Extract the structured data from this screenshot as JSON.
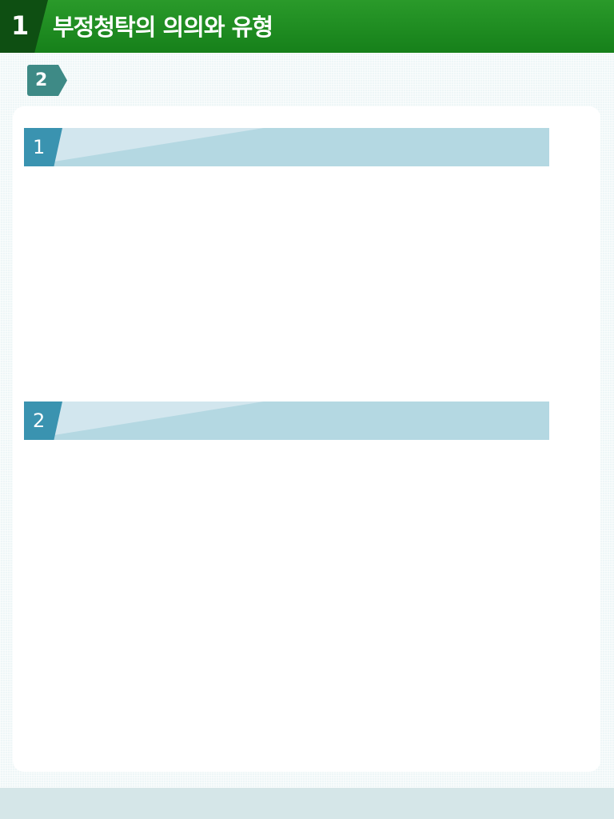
{
  "header": {
    "number": "1",
    "title": "부정청탁의 의의와 유형"
  },
  "section_tag": {
    "number": "2"
  },
  "subsections": [
    {
      "number": "1",
      "title": ""
    },
    {
      "number": "2",
      "title": ""
    }
  ],
  "colors": {
    "header_green": "#16801a",
    "header_dark": "#0e4f12",
    "tag_teal": "#3e8a86",
    "subhead_bar": "#b4d8e2",
    "subhead_num": "#3a93b0"
  }
}
